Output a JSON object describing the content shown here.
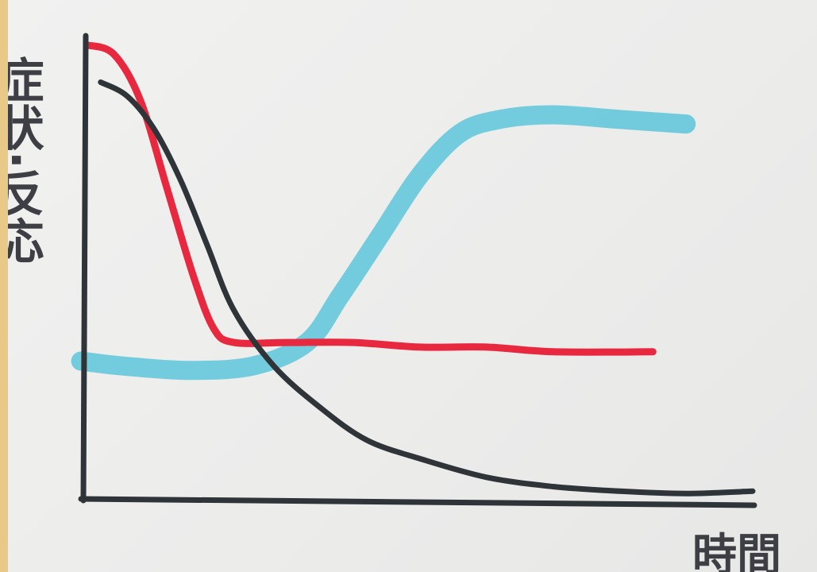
{
  "chart_data": {
    "type": "line",
    "ylabel": "症状·反応",
    "xlabel": "時間",
    "xlim": [
      0,
      100
    ],
    "ylim": [
      0,
      100
    ],
    "grid": false,
    "legend": "none",
    "series": [
      {
        "color": "#e8283f",
        "x": [
          0,
          4,
          8,
          12,
          16,
          19,
          22,
          30,
          40,
          50,
          60,
          70,
          85
        ],
        "y": [
          98,
          96,
          86,
          67,
          48,
          37,
          34,
          34,
          34,
          33,
          33,
          32,
          32
        ]
      },
      {
        "color": "#2f3439",
        "x": [
          2,
          6,
          10,
          14,
          18,
          22,
          28,
          35,
          42,
          50,
          60,
          70,
          80,
          90,
          100
        ],
        "y": [
          90,
          87,
          80,
          69,
          55,
          41,
          29,
          20,
          13,
          9,
          5,
          3,
          2,
          1.5,
          2
        ]
      },
      {
        "color": "#5dc6da",
        "x": [
          -1,
          5,
          15,
          25,
          33,
          38,
          44,
          50,
          56,
          62,
          70,
          80,
          90
        ],
        "y": [
          30,
          29,
          28,
          29,
          34,
          44,
          57,
          70,
          79,
          82,
          83,
          82,
          81
        ]
      }
    ]
  }
}
